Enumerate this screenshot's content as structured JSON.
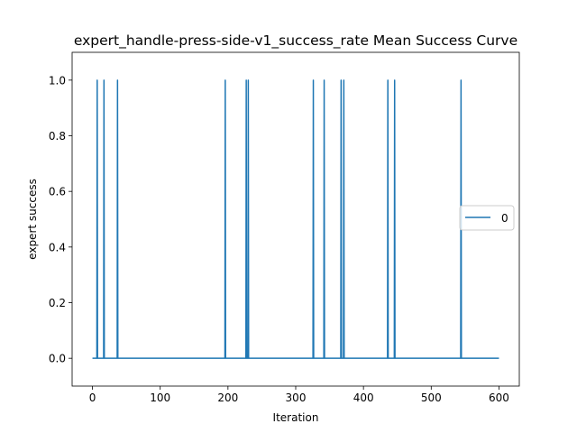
{
  "chart_data": {
    "type": "line",
    "title": "expert_handle-press-side-v1_success_rate Mean Success Curve",
    "xlabel": "Iteration",
    "ylabel": "expert success",
    "xlim": [
      -30,
      630
    ],
    "ylim": [
      -0.1,
      1.1
    ],
    "x_ticks": [
      0,
      100,
      200,
      300,
      400,
      500,
      600
    ],
    "y_ticks": [
      0.0,
      0.2,
      0.4,
      0.6,
      0.8,
      1.0
    ],
    "x_tick_labels": [
      "0",
      "100",
      "200",
      "300",
      "400",
      "500",
      "600"
    ],
    "y_tick_labels": [
      "0.0",
      "0.2",
      "0.4",
      "0.6",
      "0.8",
      "1.0"
    ],
    "grid": false,
    "legend_position": "center-right",
    "series": [
      {
        "name": "0",
        "color": "#1f77b4",
        "x_range": [
          0,
          600
        ],
        "baseline": 0,
        "spikes_at": [
          7,
          17,
          37,
          196,
          227,
          230,
          326,
          342,
          367,
          371,
          436,
          446,
          544
        ],
        "spike_value": 1
      }
    ]
  }
}
